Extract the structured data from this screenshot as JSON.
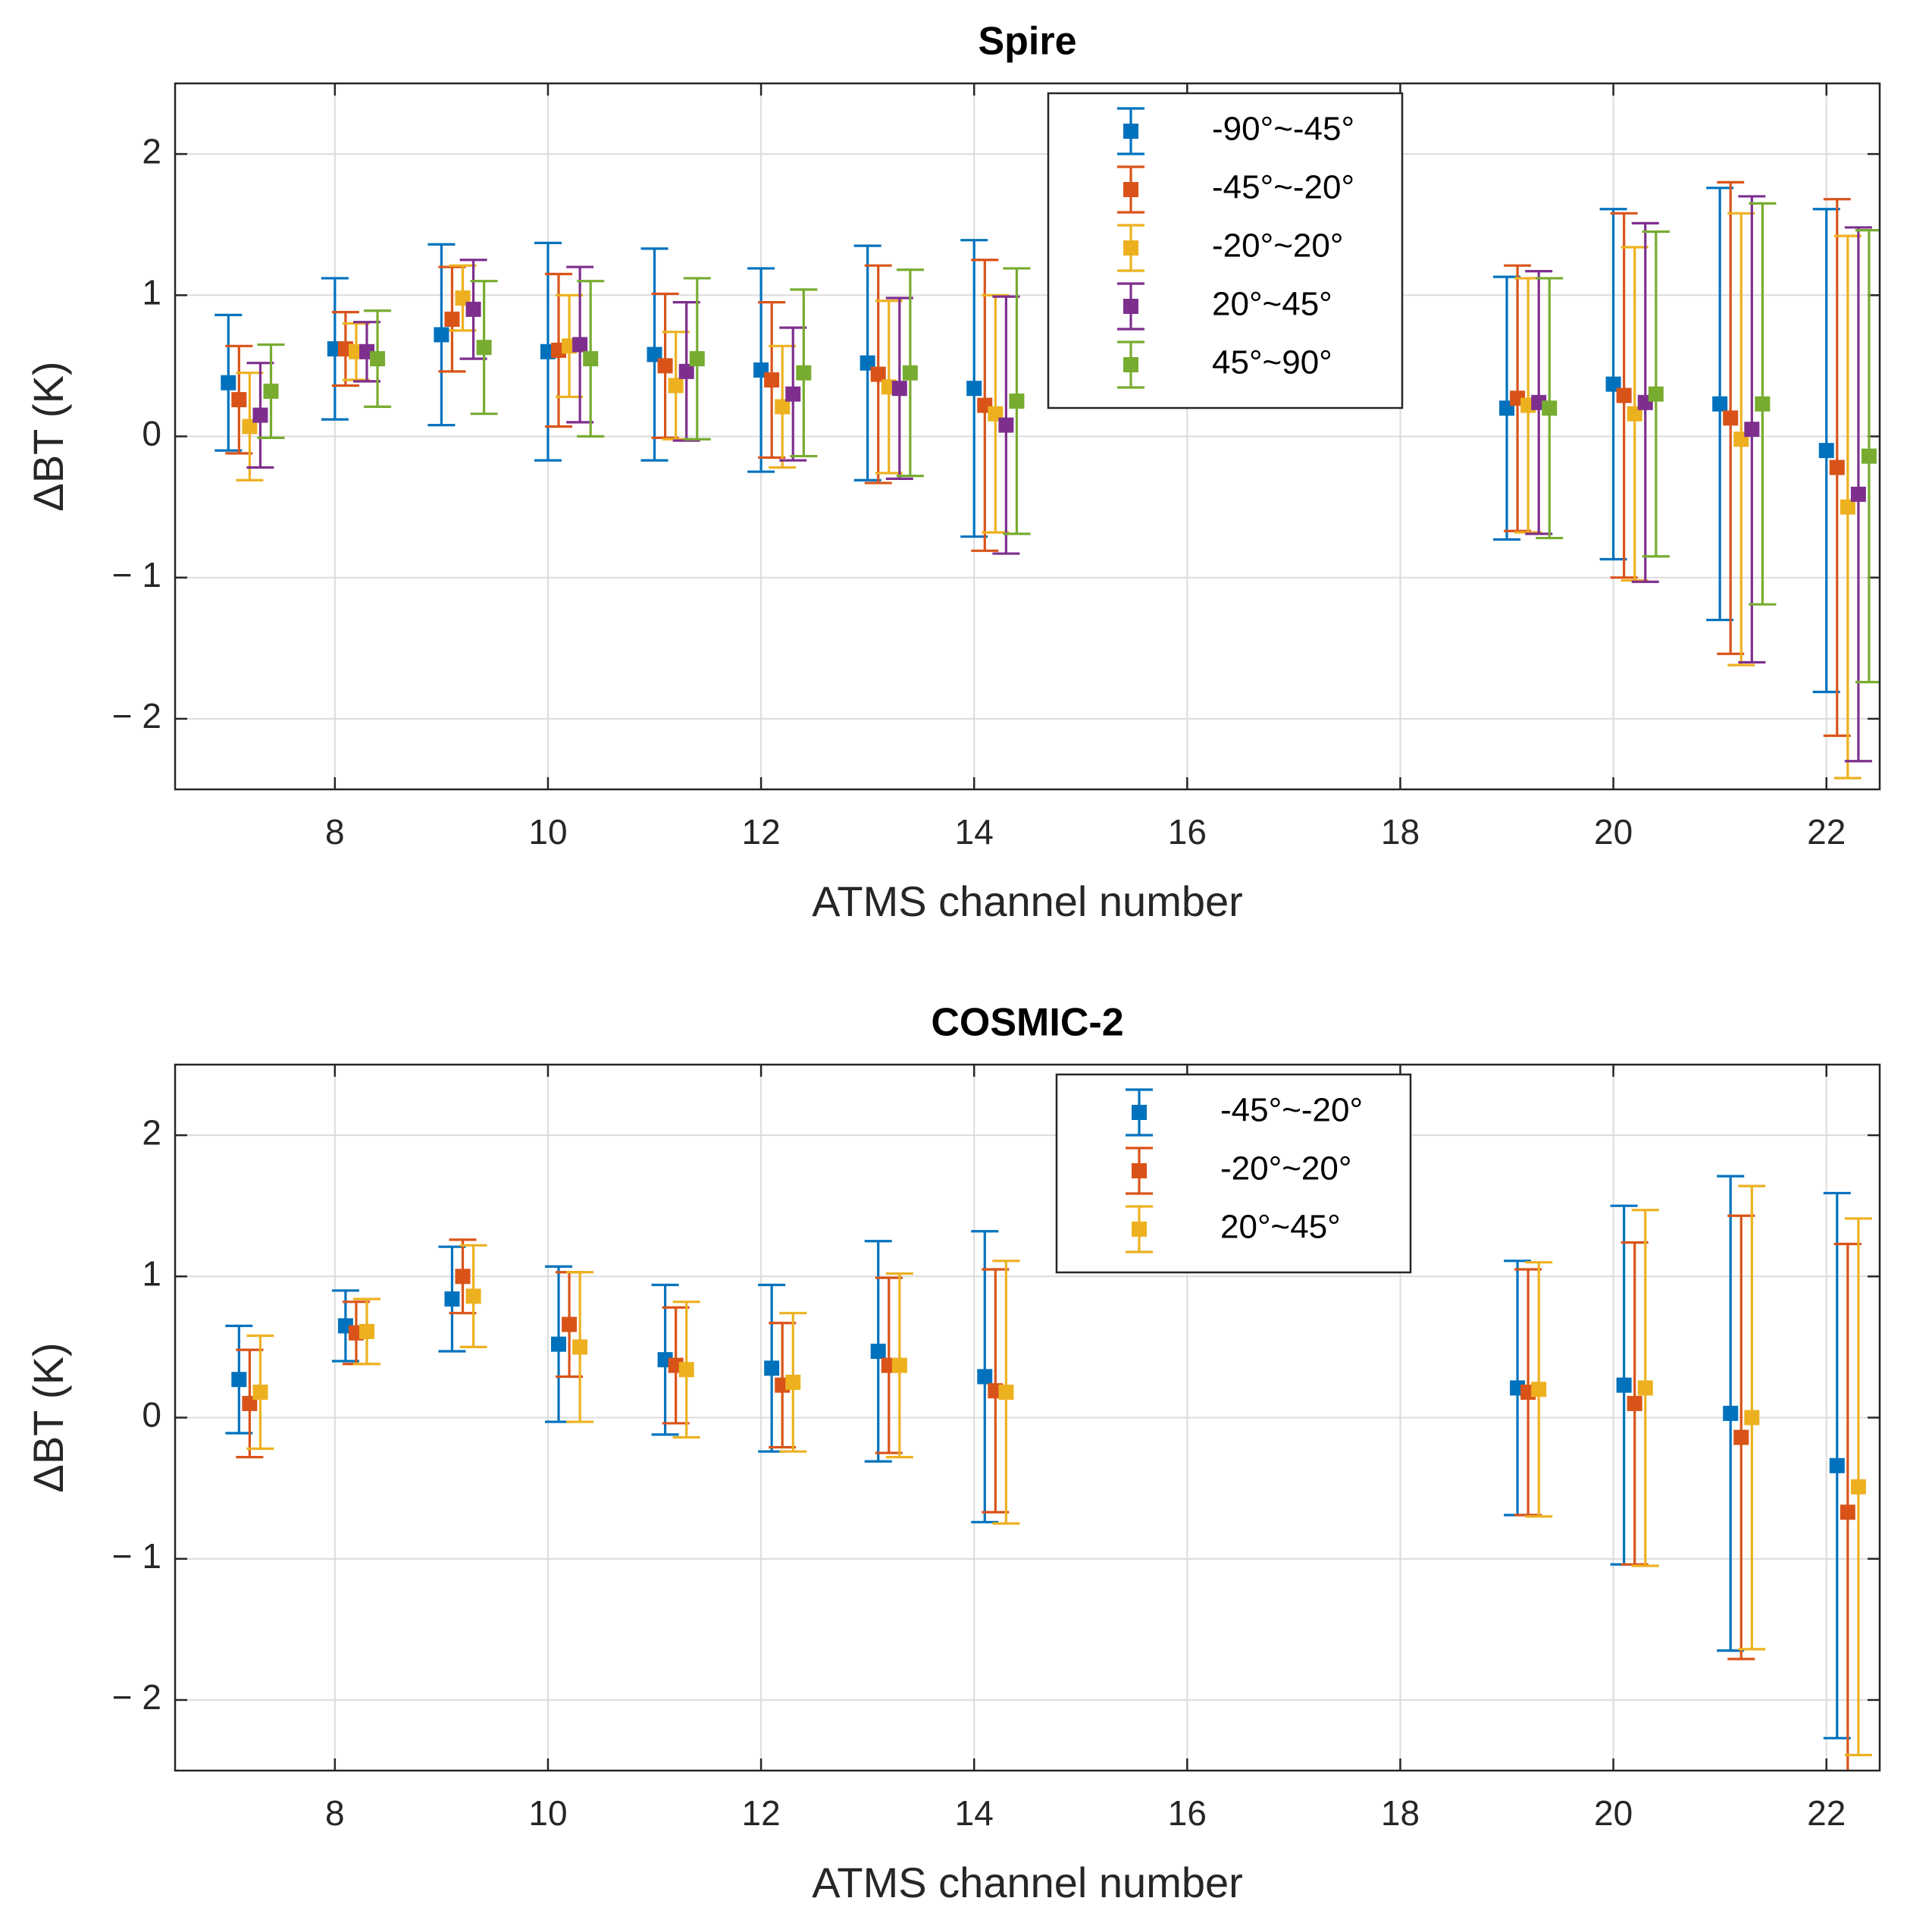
{
  "chart_data": [
    {
      "type": "errorbar",
      "title": "Spire",
      "x_label": "ATMS channel number",
      "y_label": "ΔBT (K)",
      "x": [
        7,
        8,
        9,
        10,
        11,
        12,
        13,
        14,
        19,
        20,
        21,
        22
      ],
      "series": [
        {
          "name": "-90°~-45°",
          "color": "#0072BD",
          "values": [
            0.38,
            0.62,
            0.72,
            0.6,
            0.58,
            0.47,
            0.52,
            0.34,
            0.2,
            0.37,
            0.23,
            -0.1
          ],
          "errors": [
            0.48,
            0.5,
            0.64,
            0.77,
            0.75,
            0.72,
            0.83,
            1.05,
            0.93,
            1.24,
            1.53,
            1.71
          ]
        },
        {
          "name": "-45°~-20°",
          "color": "#D95319",
          "values": [
            0.26,
            0.62,
            0.83,
            0.61,
            0.5,
            0.4,
            0.44,
            0.22,
            0.27,
            0.29,
            0.13,
            -0.22
          ],
          "errors": [
            0.38,
            0.26,
            0.37,
            0.54,
            0.51,
            0.55,
            0.77,
            1.03,
            0.94,
            1.29,
            1.67,
            1.9
          ]
        },
        {
          "name": "-20°~20°",
          "color": "#EDB120",
          "values": [
            0.07,
            0.6,
            0.98,
            0.64,
            0.36,
            0.21,
            0.35,
            0.16,
            0.22,
            0.16,
            -0.02,
            -0.5
          ],
          "errors": [
            0.38,
            0.2,
            0.23,
            0.36,
            0.38,
            0.43,
            0.61,
            0.84,
            0.9,
            1.18,
            1.6,
            1.92
          ]
        },
        {
          "name": "20°~45°",
          "color": "#7E2F8E",
          "values": [
            0.15,
            0.6,
            0.9,
            0.65,
            0.46,
            0.3,
            0.34,
            0.08,
            0.24,
            0.24,
            0.05,
            -0.41
          ],
          "errors": [
            0.37,
            0.21,
            0.35,
            0.55,
            0.49,
            0.47,
            0.64,
            0.91,
            0.93,
            1.27,
            1.65,
            1.89
          ]
        },
        {
          "name": "45°~90°",
          "color": "#77AC30",
          "values": [
            0.32,
            0.55,
            0.63,
            0.55,
            0.55,
            0.45,
            0.45,
            0.25,
            0.2,
            0.3,
            0.23,
            -0.14
          ],
          "errors": [
            0.33,
            0.34,
            0.47,
            0.55,
            0.57,
            0.59,
            0.73,
            0.94,
            0.92,
            1.15,
            1.42,
            1.6
          ]
        }
      ],
      "xlim": [
        6.5,
        22.5
      ],
      "ylim": [
        -2.5,
        2.5
      ],
      "xticks": [
        8,
        10,
        12,
        14,
        16,
        18,
        20,
        22
      ],
      "yticks": [
        {
          "value": -2,
          "label": "− 2"
        },
        {
          "value": -1,
          "label": "− 1"
        },
        0,
        1,
        2
      ],
      "grid": true
    },
    {
      "type": "errorbar",
      "title": "COSMIC-2",
      "x_label": "ATMS channel number",
      "y_label": "ΔBT (K)",
      "x": [
        7,
        8,
        9,
        10,
        11,
        12,
        13,
        14,
        19,
        20,
        21,
        22
      ],
      "series": [
        {
          "name": "-45°~-20°",
          "color": "#0072BD",
          "values": [
            0.27,
            0.65,
            0.84,
            0.52,
            0.41,
            0.35,
            0.47,
            0.29,
            0.21,
            0.23,
            0.03,
            -0.34
          ],
          "errors": [
            0.38,
            0.25,
            0.37,
            0.55,
            0.53,
            0.59,
            0.78,
            1.03,
            0.9,
            1.27,
            1.68,
            1.93
          ]
        },
        {
          "name": "-20°~20°",
          "color": "#D95319",
          "values": [
            0.1,
            0.6,
            1.0,
            0.66,
            0.37,
            0.23,
            0.37,
            0.19,
            0.18,
            0.1,
            -0.14,
            -0.67
          ],
          "errors": [
            0.38,
            0.22,
            0.26,
            0.37,
            0.41,
            0.44,
            0.62,
            0.86,
            0.87,
            1.14,
            1.57,
            1.9
          ]
        },
        {
          "name": "20°~45°",
          "color": "#EDB120",
          "values": [
            0.18,
            0.61,
            0.86,
            0.5,
            0.34,
            0.25,
            0.37,
            0.18,
            0.2,
            0.21,
            0.0,
            -0.49
          ],
          "errors": [
            0.4,
            0.23,
            0.36,
            0.53,
            0.48,
            0.49,
            0.65,
            0.93,
            0.9,
            1.26,
            1.64,
            1.9
          ]
        }
      ],
      "xlim": [
        6.5,
        22.5
      ],
      "ylim": [
        -2.5,
        2.5
      ],
      "xticks": [
        8,
        10,
        12,
        14,
        16,
        18,
        20,
        22
      ],
      "yticks": [
        {
          "value": -2,
          "label": "− 2"
        },
        {
          "value": -1,
          "label": "− 1"
        },
        0,
        1,
        2
      ],
      "grid": true
    }
  ]
}
